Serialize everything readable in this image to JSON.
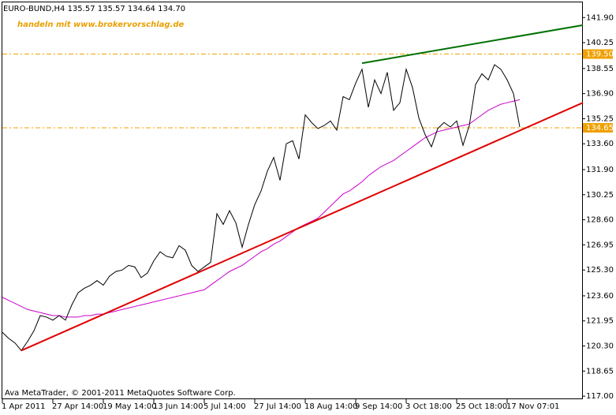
{
  "chart_data": {
    "type": "line",
    "title": "EURO-BUND,H4  135.57 135.57 134.64 134.70",
    "annotation": "handeln mit www.brokervorschlag.de",
    "footer": "Ava MetaTrader, © 2001-2011 MetaQuotes Software Corp.",
    "categories": [
      "1 Apr 2011",
      null,
      null,
      null,
      null,
      null,
      null,
      null,
      "27 Apr 14:00",
      null,
      null,
      null,
      null,
      null,
      null,
      null,
      "19 May 14:00",
      null,
      null,
      null,
      null,
      null,
      null,
      null,
      "13 Jun 14:00",
      null,
      null,
      null,
      null,
      null,
      null,
      null,
      "5 Jul 14:00",
      null,
      null,
      null,
      null,
      null,
      null,
      null,
      "27 Jul 14:00",
      null,
      null,
      null,
      null,
      null,
      null,
      null,
      "18 Aug 14:00",
      null,
      null,
      null,
      null,
      null,
      null,
      null,
      "9 Sep 14:00",
      null,
      null,
      null,
      null,
      null,
      null,
      null,
      "3 Oct 18:00",
      null,
      null,
      null,
      null,
      null,
      null,
      null,
      "25 Oct 18:00",
      null,
      null,
      null,
      null,
      null,
      null,
      null,
      "17 Nov 07:01",
      null,
      null,
      null,
      null,
      null,
      null,
      null,
      null,
      null,
      null,
      null
    ],
    "series": [
      {
        "color": "#000000",
        "values": [
          121.2,
          120.8,
          120.5,
          120.0,
          120.6,
          121.3,
          122.3,
          122.2,
          122.0,
          122.3,
          122.0,
          123.0,
          123.8,
          124.1,
          124.3,
          124.6,
          124.3,
          124.9,
          125.2,
          125.3,
          125.6,
          125.5,
          124.8,
          125.1,
          125.9,
          126.5,
          126.2,
          126.1,
          126.9,
          126.6,
          125.6,
          125.2,
          125.5,
          125.8,
          129.0,
          128.3,
          129.2,
          128.4,
          126.8,
          128.3,
          129.6,
          130.5,
          131.8,
          132.7,
          131.2,
          133.6,
          133.8,
          132.6,
          135.5,
          135.0,
          134.6,
          134.8,
          135.1,
          134.5,
          136.7,
          136.5,
          137.6,
          138.5,
          136.0,
          137.8,
          136.9,
          138.3,
          135.8,
          136.3,
          138.5,
          137.3,
          135.3,
          134.2,
          133.4,
          134.6,
          135.0,
          134.7,
          135.1,
          133.5,
          134.8,
          137.5,
          138.2,
          137.8,
          138.8,
          138.5,
          137.8,
          136.9,
          134.7,
          null,
          null,
          null,
          null,
          null,
          null,
          null,
          null,
          null
        ]
      },
      {
        "color": "#cc00cc",
        "values": [
          123.5,
          123.3,
          123.1,
          122.9,
          122.7,
          122.6,
          122.5,
          122.4,
          122.3,
          122.3,
          122.2,
          122.2,
          122.2,
          122.3,
          122.3,
          122.4,
          122.4,
          122.5,
          122.6,
          122.7,
          122.8,
          122.9,
          123.0,
          123.1,
          123.2,
          123.3,
          123.4,
          123.5,
          123.6,
          123.7,
          123.8,
          123.9,
          124.0,
          124.3,
          124.6,
          124.9,
          125.2,
          125.4,
          125.6,
          125.9,
          126.2,
          126.5,
          126.7,
          127.0,
          127.2,
          127.5,
          127.8,
          128.1,
          128.3,
          128.5,
          128.7,
          129.1,
          129.5,
          129.9,
          130.3,
          130.5,
          130.8,
          131.1,
          131.5,
          131.8,
          132.1,
          132.3,
          132.5,
          132.8,
          133.1,
          133.4,
          133.7,
          134.0,
          134.2,
          134.4,
          134.5,
          134.6,
          134.7,
          134.8,
          134.9,
          135.2,
          135.5,
          135.8,
          136.0,
          136.2,
          136.3,
          136.4,
          136.5,
          null,
          null,
          null,
          null,
          null,
          null,
          null,
          null,
          null
        ]
      }
    ],
    "ylim": [
      116.8,
      142.9
    ],
    "yticks": [
      {
        "value": 141.9,
        "label": "141.90"
      },
      {
        "value": 140.25,
        "label": "140.25"
      },
      {
        "value": 138.55,
        "label": "138.55"
      },
      {
        "value": 136.9,
        "label": "136.90"
      },
      {
        "value": 135.25,
        "label": "135.25"
      },
      {
        "value": 133.6,
        "label": "133.60"
      },
      {
        "value": 131.9,
        "label": "131.90"
      },
      {
        "value": 130.25,
        "label": "130.25"
      },
      {
        "value": 128.6,
        "label": "128.60"
      },
      {
        "value": 126.95,
        "label": "126.95"
      },
      {
        "value": 125.3,
        "label": "125.30"
      },
      {
        "value": 123.6,
        "label": "123.60"
      },
      {
        "value": 121.95,
        "label": "121.95"
      },
      {
        "value": 120.3,
        "label": "120.30"
      },
      {
        "value": 118.65,
        "label": "118.65"
      },
      {
        "value": 117,
        "label": "117.00"
      }
    ],
    "hlines": [
      {
        "value": 139.5,
        "label": "139.50",
        "color": "#f0a000"
      },
      {
        "value": 134.65,
        "label": "134.65",
        "color": "#f0a000"
      }
    ],
    "trendlines": [
      {
        "color": "#e00000",
        "points": [
          [
            3,
            120.0
          ],
          [
            92,
            136.3
          ]
        ]
      },
      {
        "color": "#007000",
        "points": [
          [
            57,
            138.9
          ],
          [
            92,
            141.4
          ]
        ]
      }
    ]
  }
}
